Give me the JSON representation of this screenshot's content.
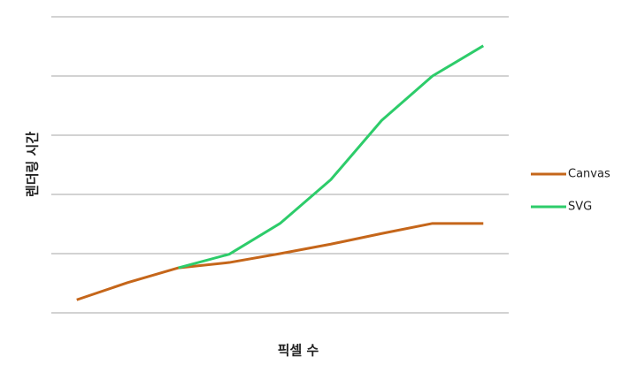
{
  "chart_data": {
    "type": "line",
    "xlabel": "픽셀 수",
    "ylabel": "렌더링 시간",
    "categories": [
      null,
      null,
      null,
      null,
      null,
      null,
      null,
      null,
      null
    ],
    "series": [
      {
        "name": "Canvas",
        "color": "#c5661a",
        "values": [
          0.22,
          0.51,
          0.76,
          0.85,
          1.0,
          1.16,
          1.34,
          1.51,
          1.51
        ]
      },
      {
        "name": "SVG",
        "color": "#2dcc6a",
        "values": [
          null,
          null,
          0.76,
          0.99,
          1.51,
          2.25,
          3.25,
          4.0,
          4.51
        ]
      }
    ],
    "ylim": [
      0,
      5
    ],
    "yticks": [
      0,
      1,
      2,
      3,
      4,
      5
    ],
    "ytick_labels": false,
    "grid": true,
    "legend": "right"
  }
}
